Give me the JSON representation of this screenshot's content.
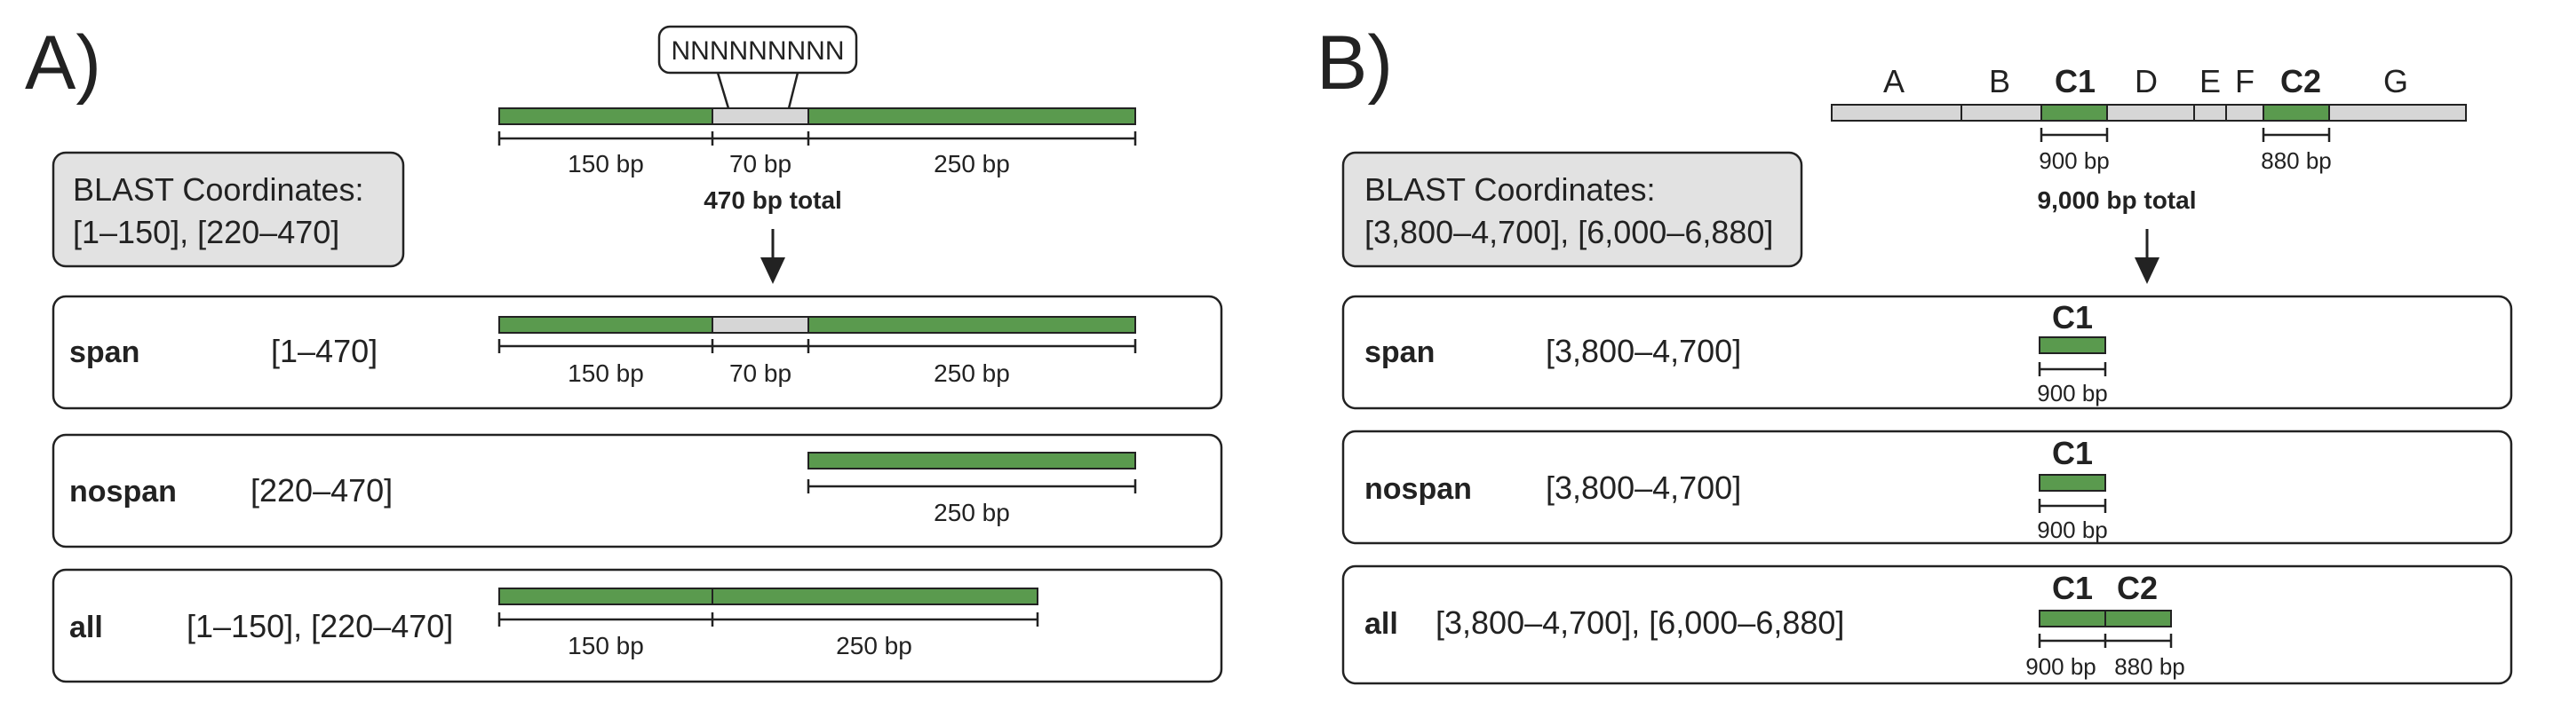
{
  "panel_a": {
    "label": "A)",
    "insert_text": "NNNNNNNNN",
    "top_bar_labels": [
      "150 bp",
      "70 bp",
      "250 bp"
    ],
    "total_text": "470 bp total",
    "blast_title": "BLAST Coordinates:",
    "blast_coords": "[1–150], [220–470]",
    "rows": [
      {
        "name": "span",
        "coords": "[1–470]",
        "labels": [
          "150 bp",
          "70 bp",
          "250 bp"
        ]
      },
      {
        "name": "nospan",
        "coords": "[220–470]",
        "labels": [
          "250 bp"
        ]
      },
      {
        "name": "all",
        "coords": "[1–150], [220–470]",
        "labels": [
          "150 bp",
          "250 bp"
        ]
      }
    ]
  },
  "panel_b": {
    "label": "B)",
    "segment_letters": [
      "A",
      "B",
      "C1",
      "D",
      "E",
      "F",
      "C2",
      "G"
    ],
    "top_bar_labels": [
      "900 bp",
      "880 bp"
    ],
    "total_text": "9,000 bp total",
    "blast_title": "BLAST Coordinates:",
    "blast_coords": "[3,800–4,700], [6,000–6,880]",
    "rows": [
      {
        "name": "span",
        "coords": "[3,800–4,700]",
        "heads": [
          "C1"
        ],
        "labels": [
          "900 bp"
        ]
      },
      {
        "name": "nospan",
        "coords": "[3,800–4,700]",
        "heads": [
          "C1"
        ],
        "labels": [
          "900 bp"
        ]
      },
      {
        "name": "all",
        "coords": "[3,800–4,700], [6,000–6,880]",
        "heads": [
          "C1",
          "C2"
        ],
        "labels": [
          "900 bp",
          "880 bp"
        ]
      }
    ]
  }
}
